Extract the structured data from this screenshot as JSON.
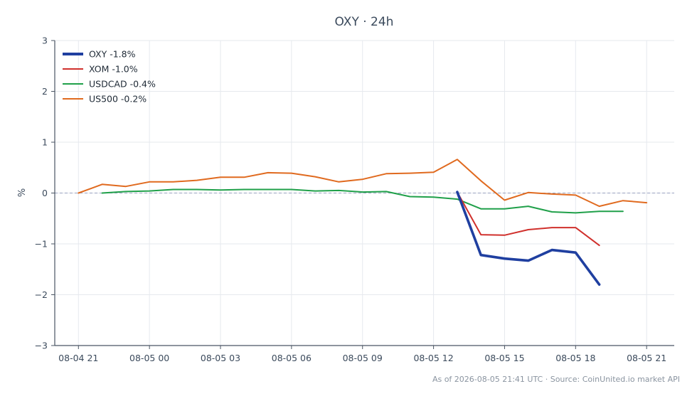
{
  "chart_data": {
    "type": "line",
    "title": "OXY · 24h",
    "xlabel": "",
    "ylabel": "%",
    "ylim": [
      -3,
      3
    ],
    "xlim": [
      "2026-08-04 20:00",
      "2026-08-05 22:10"
    ],
    "yticks": [
      "3",
      "2",
      "1",
      "0",
      "−1",
      "−2",
      "−3"
    ],
    "yticks_values": [
      3,
      2,
      1,
      0,
      -1,
      -2,
      -3
    ],
    "xticks": [
      {
        "t": "2026-08-04 21:00",
        "label": "08-04 21"
      },
      {
        "t": "2026-08-05 00:00",
        "label": "08-05 00"
      },
      {
        "t": "2026-08-05 03:00",
        "label": "08-05 03"
      },
      {
        "t": "2026-08-05 06:00",
        "label": "08-05 06"
      },
      {
        "t": "2026-08-05 09:00",
        "label": "08-05 09"
      },
      {
        "t": "2026-08-05 12:00",
        "label": "08-05 12"
      },
      {
        "t": "2026-08-05 15:00",
        "label": "08-05 15"
      },
      {
        "t": "2026-08-05 18:00",
        "label": "08-05 18"
      },
      {
        "t": "2026-08-05 21:00",
        "label": "08-05 21"
      }
    ],
    "grid": true,
    "zero_line": {
      "y": 0,
      "style": "dashed",
      "color": "#9aa3c0"
    },
    "legend_position": "top-left",
    "series": [
      {
        "name": "OXY -1.8%",
        "color": "#1f3fa0",
        "emphasis": true,
        "points": [
          [
            "2026-08-05 13:00",
            0.02
          ],
          [
            "2026-08-05 14:00",
            -1.22
          ],
          [
            "2026-08-05 15:00",
            -1.29
          ],
          [
            "2026-08-05 16:00",
            -1.33
          ],
          [
            "2026-08-05 17:00",
            -1.12
          ],
          [
            "2026-08-05 18:00",
            -1.17
          ],
          [
            "2026-08-05 19:00",
            -1.8
          ]
        ]
      },
      {
        "name": "XOM -1.0%",
        "color": "#d0302c",
        "emphasis": false,
        "points": [
          [
            "2026-08-05 13:00",
            0.02
          ],
          [
            "2026-08-05 14:00",
            -0.82
          ],
          [
            "2026-08-05 15:00",
            -0.83
          ],
          [
            "2026-08-05 16:00",
            -0.72
          ],
          [
            "2026-08-05 17:00",
            -0.68
          ],
          [
            "2026-08-05 18:00",
            -0.68
          ],
          [
            "2026-08-05 19:00",
            -1.03
          ]
        ]
      },
      {
        "name": "USDCAD -0.4%",
        "color": "#20a04a",
        "emphasis": false,
        "points": [
          [
            "2026-08-04 22:00",
            0.0
          ],
          [
            "2026-08-04 23:00",
            0.03
          ],
          [
            "2026-08-05 00:00",
            0.04
          ],
          [
            "2026-08-05 01:00",
            0.07
          ],
          [
            "2026-08-05 02:00",
            0.07
          ],
          [
            "2026-08-05 03:00",
            0.06
          ],
          [
            "2026-08-05 04:00",
            0.07
          ],
          [
            "2026-08-05 05:00",
            0.07
          ],
          [
            "2026-08-05 06:00",
            0.07
          ],
          [
            "2026-08-05 07:00",
            0.04
          ],
          [
            "2026-08-05 08:00",
            0.05
          ],
          [
            "2026-08-05 09:00",
            0.02
          ],
          [
            "2026-08-05 10:00",
            0.03
          ],
          [
            "2026-08-05 11:00",
            -0.07
          ],
          [
            "2026-08-05 12:00",
            -0.08
          ],
          [
            "2026-08-05 13:00",
            -0.12
          ],
          [
            "2026-08-05 14:00",
            -0.31
          ],
          [
            "2026-08-05 15:00",
            -0.31
          ],
          [
            "2026-08-05 16:00",
            -0.26
          ],
          [
            "2026-08-05 17:00",
            -0.37
          ],
          [
            "2026-08-05 18:00",
            -0.39
          ],
          [
            "2026-08-05 19:00",
            -0.36
          ],
          [
            "2026-08-05 20:00",
            -0.36
          ]
        ]
      },
      {
        "name": "US500 -0.2%",
        "color": "#e06a1f",
        "emphasis": false,
        "points": [
          [
            "2026-08-04 21:00",
            0.0
          ],
          [
            "2026-08-04 22:00",
            0.17
          ],
          [
            "2026-08-04 23:00",
            0.13
          ],
          [
            "2026-08-05 00:00",
            0.22
          ],
          [
            "2026-08-05 01:00",
            0.22
          ],
          [
            "2026-08-05 02:00",
            0.25
          ],
          [
            "2026-08-05 03:00",
            0.31
          ],
          [
            "2026-08-05 04:00",
            0.31
          ],
          [
            "2026-08-05 05:00",
            0.4
          ],
          [
            "2026-08-05 06:00",
            0.39
          ],
          [
            "2026-08-05 07:00",
            0.32
          ],
          [
            "2026-08-05 08:00",
            0.22
          ],
          [
            "2026-08-05 09:00",
            0.27
          ],
          [
            "2026-08-05 10:00",
            0.38
          ],
          [
            "2026-08-05 11:00",
            0.39
          ],
          [
            "2026-08-05 12:00",
            0.41
          ],
          [
            "2026-08-05 13:00",
            0.66
          ],
          [
            "2026-08-05 14:00",
            0.24
          ],
          [
            "2026-08-05 15:00",
            -0.14
          ],
          [
            "2026-08-05 16:00",
            0.01
          ],
          [
            "2026-08-05 17:00",
            -0.02
          ],
          [
            "2026-08-05 18:00",
            -0.04
          ],
          [
            "2026-08-05 19:00",
            -0.26
          ],
          [
            "2026-08-05 20:00",
            -0.15
          ],
          [
            "2026-08-05 21:00",
            -0.19
          ]
        ]
      }
    ]
  },
  "footer": {
    "text": "As of 2026-08-05 21:41 UTC · Source: CoinUnited.io market API"
  },
  "colors": {
    "axis": "#4a5563",
    "grid": "#e6e9ee",
    "text": "#3b4a5c"
  }
}
